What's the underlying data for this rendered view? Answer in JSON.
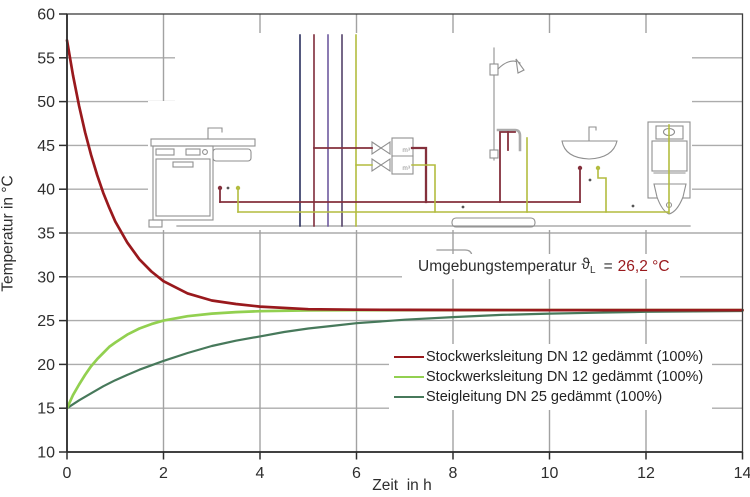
{
  "chart_data": {
    "type": "line",
    "title": "",
    "xlabel": "Zeit  in h",
    "ylabel": "Temperatur in °C",
    "xlim": [
      0,
      14
    ],
    "ylim": [
      10,
      60
    ],
    "xticks": [
      0,
      2,
      4,
      6,
      8,
      10,
      12,
      14
    ],
    "yticks": [
      10,
      15,
      20,
      25,
      30,
      35,
      40,
      45,
      50,
      55,
      60
    ],
    "grid": true,
    "legend_position": "inside-bottom-right",
    "series": [
      {
        "name": "Stockwerksleitung DN 12 gedämmt (100%)",
        "color": "#99191D",
        "x": [
          0,
          0.125,
          0.25,
          0.375,
          0.5,
          0.625,
          0.75,
          0.875,
          1,
          1.25,
          1.5,
          1.75,
          2,
          2.5,
          3,
          3.5,
          4,
          5,
          6,
          7,
          8,
          10,
          12,
          14
        ],
        "y": [
          57,
          53,
          49.5,
          46.5,
          43.9,
          41.6,
          39.6,
          37.9,
          36.3,
          33.9,
          32,
          30.6,
          29.5,
          28.1,
          27.3,
          26.9,
          26.6,
          26.3,
          26.25,
          26.22,
          26.21,
          26.2,
          26.2,
          26.2
        ]
      },
      {
        "name": "Stockwerksleitung DN 12 gedämmt (100%)",
        "color": "#92D050",
        "x": [
          0,
          0.125,
          0.25,
          0.375,
          0.5,
          0.625,
          0.75,
          0.875,
          1,
          1.25,
          1.5,
          1.75,
          2,
          2.5,
          3,
          3.5,
          4,
          5,
          6,
          7,
          8,
          10,
          12,
          14
        ],
        "y": [
          15,
          16.5,
          17.7,
          18.8,
          19.8,
          20.6,
          21.3,
          22,
          22.5,
          23.4,
          24.1,
          24.6,
          25,
          25.5,
          25.8,
          25.97,
          26.07,
          26.16,
          26.19,
          26.2,
          26.2,
          26.2,
          26.2,
          26.2
        ]
      },
      {
        "name": "Steigleitung DN 25 gedämmt (100%)",
        "color": "#47795B",
        "x": [
          0,
          0.25,
          0.5,
          0.75,
          1,
          1.25,
          1.5,
          1.75,
          2,
          2.5,
          3,
          3.5,
          4,
          4.5,
          5,
          5.5,
          6,
          7,
          8,
          9,
          10,
          11,
          12,
          13,
          14
        ],
        "y": [
          15,
          15.9,
          16.7,
          17.5,
          18.2,
          18.8,
          19.4,
          19.9,
          20.4,
          21.3,
          22.1,
          22.7,
          23.2,
          23.7,
          24.1,
          24.4,
          24.7,
          25.1,
          25.4,
          25.65,
          25.8,
          25.9,
          26,
          26.05,
          26.1
        ]
      }
    ],
    "annotation": {
      "prefix": "Umgebungstemperatur",
      "symbol": "ϑ",
      "subscript": "L",
      "equals": "=",
      "value": "26,2 °C",
      "value_color": "#99191D"
    }
  },
  "schematic": {
    "meter_label": "m³"
  }
}
